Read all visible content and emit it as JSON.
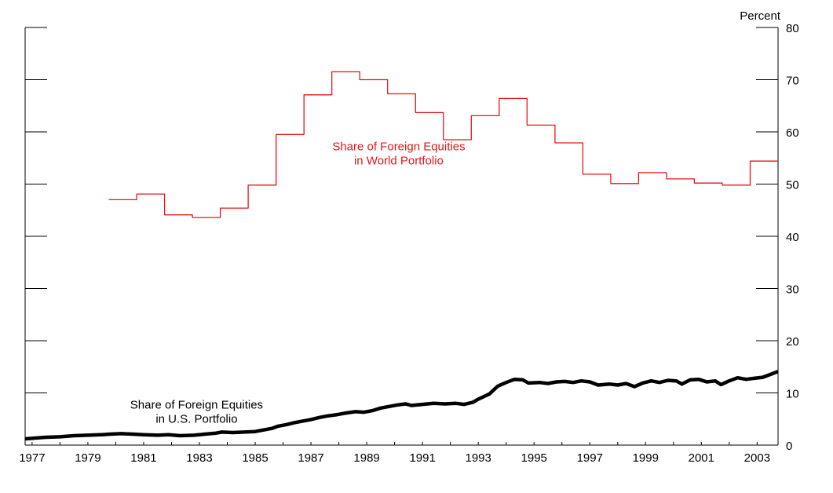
{
  "chart_data": {
    "type": "line",
    "title": "",
    "xlabel": "",
    "ylabel": "Percent",
    "ylim": [
      0,
      80
    ],
    "xlim": [
      1976.75,
      2003.75
    ],
    "yticks": [
      0,
      10,
      20,
      30,
      40,
      50,
      60,
      70,
      80
    ],
    "xticks": [
      "1977",
      "1979",
      "1981",
      "1983",
      "1985",
      "1987",
      "1989",
      "1991",
      "1993",
      "1995",
      "1997",
      "1999",
      "2001",
      "2003"
    ],
    "grid": false,
    "y_axis_side": "right",
    "annotations": [
      {
        "id": "world",
        "lines": [
          "Share of Foreign Equities",
          "in World Portfolio"
        ],
        "x": 1990.15,
        "y": 56.5,
        "color": "#e4161b"
      },
      {
        "id": "us",
        "lines": [
          "Share of Foreign Equities",
          "in U.S. Portfolio"
        ],
        "x": 1982.9,
        "y": 7.0,
        "color": "#000000"
      }
    ],
    "series": [
      {
        "id": "world",
        "color": "#e4161b",
        "line_width": 1.3,
        "step": true,
        "x": [
          1979.75,
          1980.75,
          1981.75,
          1982.75,
          1983.75,
          1984.75,
          1985.75,
          1986.75,
          1987.75,
          1988.75,
          1989.75,
          1990.75,
          1991.75,
          1992.75,
          1993.75,
          1994.75,
          1995.75,
          1996.75,
          1997.75,
          1998.75,
          1999.75,
          2000.75,
          2001.75,
          2002.75
        ],
        "y": [
          47.0,
          48.1,
          44.1,
          43.6,
          45.4,
          49.8,
          59.5,
          67.1,
          71.5,
          70.0,
          67.3,
          63.7,
          58.5,
          63.1,
          66.4,
          61.3,
          57.9,
          51.9,
          50.1,
          52.2,
          51.0,
          50.2,
          49.8,
          54.4
        ],
        "x_end": 2003.75
      },
      {
        "id": "us",
        "color": "#000000",
        "line_width": 4.5,
        "step": false,
        "x": [
          1976.75,
          1977.5,
          1978.0,
          1978.5,
          1979.0,
          1979.5,
          1979.8,
          1980.2,
          1980.6,
          1981.0,
          1981.5,
          1981.9,
          1982.3,
          1982.8,
          1983.2,
          1983.6,
          1983.8,
          1984.2,
          1984.6,
          1985.0,
          1985.3,
          1985.6,
          1985.8,
          1986.1,
          1986.4,
          1986.7,
          1987.0,
          1987.3,
          1987.6,
          1987.9,
          1988.2,
          1988.6,
          1988.9,
          1989.2,
          1989.5,
          1989.8,
          1990.1,
          1990.4,
          1990.6,
          1991.0,
          1991.4,
          1991.8,
          1992.2,
          1992.5,
          1992.8,
          1993.0,
          1993.4,
          1993.7,
          1994.0,
          1994.3,
          1994.6,
          1994.8,
          1995.2,
          1995.5,
          1995.8,
          1996.1,
          1996.4,
          1996.7,
          1997.0,
          1997.3,
          1997.7,
          1998.0,
          1998.3,
          1998.6,
          1998.9,
          1999.2,
          1999.5,
          1999.8,
          2000.1,
          2000.3,
          2000.6,
          2000.9,
          2001.2,
          2001.5,
          2001.7,
          2002.0,
          2002.3,
          2002.6,
          2002.9,
          2003.2,
          2003.5,
          2003.75
        ],
        "y": [
          1.2,
          1.5,
          1.6,
          1.8,
          1.9,
          2.0,
          2.1,
          2.2,
          2.1,
          2.0,
          1.9,
          2.0,
          1.8,
          1.9,
          2.1,
          2.3,
          2.5,
          2.4,
          2.5,
          2.6,
          2.9,
          3.2,
          3.6,
          3.9,
          4.3,
          4.6,
          4.9,
          5.3,
          5.6,
          5.8,
          6.1,
          6.4,
          6.3,
          6.6,
          7.1,
          7.4,
          7.7,
          7.9,
          7.6,
          7.8,
          8.0,
          7.9,
          8.0,
          7.8,
          8.2,
          8.8,
          9.8,
          11.3,
          12.0,
          12.6,
          12.5,
          11.9,
          12.0,
          11.8,
          12.1,
          12.2,
          12.0,
          12.3,
          12.1,
          11.5,
          11.7,
          11.5,
          11.8,
          11.2,
          11.9,
          12.3,
          12.0,
          12.4,
          12.3,
          11.7,
          12.5,
          12.6,
          12.1,
          12.3,
          11.6,
          12.3,
          12.9,
          12.6,
          12.8,
          13.0,
          13.6,
          14.1
        ]
      }
    ]
  }
}
